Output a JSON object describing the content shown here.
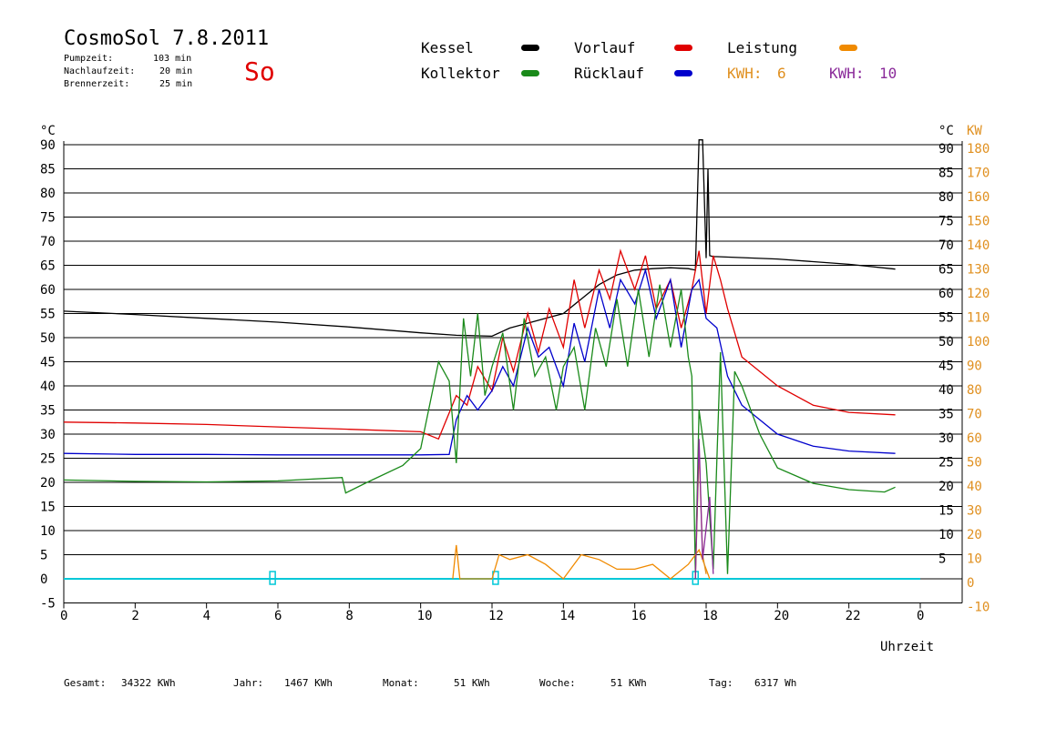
{
  "header": {
    "title": "CosmoSol 7.8.2011",
    "day": "So",
    "info": [
      {
        "label": "Pumpzeit:",
        "value": "103 min"
      },
      {
        "label": "Nachlaufzeit:",
        "value": "20 min"
      },
      {
        "label": "Brennerzeit:",
        "value": "25 min"
      }
    ]
  },
  "legend": {
    "kessel": {
      "label": "Kessel",
      "color": "#000000"
    },
    "vorlauf": {
      "label": "Vorlauf",
      "color": "#e00000"
    },
    "leistung": {
      "label": "Leistung",
      "color": "#f08a00"
    },
    "kollektor": {
      "label": "Kollektor",
      "color": "#1a8a1a"
    },
    "ruecklauf": {
      "label": "Rücklauf",
      "color": "#0000cc"
    },
    "kwh1": {
      "label": "KWH:",
      "value": "6",
      "color": "#e09020"
    },
    "kwh2": {
      "label": "KWH:",
      "value": "10",
      "color": "#8a2a9a"
    }
  },
  "footer": [
    {
      "label": "Gesamt:",
      "value": "34322 KWh"
    },
    {
      "label": "Jahr:",
      "value": "1467 KWh"
    },
    {
      "label": "Monat:",
      "value": "51 KWh"
    },
    {
      "label": "Woche:",
      "value": "51 KWh"
    },
    {
      "label": "Tag:",
      "value": "6317 Wh"
    }
  ],
  "chart_data": {
    "type": "line",
    "xlabel": "Uhrzeit",
    "ylabel_left": "°C",
    "ylabel_right_temp": "°C",
    "ylabel_right_power": "KW",
    "xlim": [
      0,
      24
    ],
    "ylim": [
      -5,
      92
    ],
    "x_ticks": [
      "0",
      "2",
      "4",
      "6",
      "8",
      "10",
      "12",
      "14",
      "16",
      "18",
      "20",
      "22",
      "0"
    ],
    "y_ticks_left": [
      "-5",
      "0",
      "5",
      "10",
      "15",
      "20",
      "25",
      "30",
      "35",
      "40",
      "45",
      "50",
      "55",
      "60",
      "65",
      "70",
      "75",
      "80",
      "85",
      "90"
    ],
    "y_ticks_right": [
      "5",
      "10",
      "15",
      "20",
      "25",
      "30",
      "35",
      "40",
      "45",
      "50",
      "55",
      "60",
      "65",
      "70",
      "75",
      "80",
      "85",
      "90"
    ],
    "y_ticks_kw": [
      "-10",
      "0",
      "10",
      "20",
      "30",
      "40",
      "50",
      "60",
      "70",
      "80",
      "90",
      "100",
      "110",
      "120",
      "130",
      "140",
      "150",
      "160",
      "170",
      "180"
    ],
    "grid": true,
    "series": [
      {
        "name": "Kessel",
        "color": "#000000",
        "x": [
          0,
          2,
          4,
          6,
          8,
          10,
          11,
          12,
          12.5,
          13,
          13.5,
          14,
          14.5,
          15,
          15.5,
          16,
          16.5,
          17,
          17.5,
          17.7,
          17.8,
          17.9,
          18,
          18.05,
          18.1,
          18.2,
          18.3,
          20,
          22,
          23.3
        ],
        "y": [
          55.5,
          54.8,
          54,
          53.2,
          52.2,
          51,
          50.5,
          50.3,
          52,
          53,
          54,
          55,
          58,
          61,
          63,
          64,
          64.3,
          64.5,
          64.3,
          64,
          91,
          91,
          66.5,
          85,
          67,
          66.8,
          66.8,
          66.3,
          65.2,
          64.2
        ]
      },
      {
        "name": "Vorlauf",
        "color": "#e00000",
        "x": [
          0,
          2,
          4,
          6,
          8,
          10,
          10.5,
          11,
          11.3,
          11.6,
          12,
          12.3,
          12.6,
          13,
          13.3,
          13.6,
          14,
          14.3,
          14.6,
          15,
          15.3,
          15.6,
          16,
          16.3,
          16.6,
          17,
          17.3,
          17.6,
          17.8,
          18,
          18.2,
          18.4,
          18.6,
          19,
          20,
          21,
          22,
          23.3
        ],
        "y": [
          32.5,
          32.3,
          32,
          31.5,
          31,
          30.5,
          29,
          38,
          36,
          44,
          39,
          50,
          43,
          55,
          47,
          56,
          48,
          62,
          52,
          64,
          58,
          68,
          60,
          67,
          56,
          62,
          52,
          60,
          68,
          55,
          67,
          62,
          56,
          46,
          40,
          36,
          34.5,
          34
        ]
      },
      {
        "name": "Rücklauf",
        "color": "#0000cc",
        "x": [
          0,
          2,
          4,
          6,
          8,
          10,
          10.8,
          11,
          11.3,
          11.6,
          12,
          12.3,
          12.6,
          13,
          13.3,
          13.6,
          14,
          14.3,
          14.6,
          15,
          15.3,
          15.6,
          16,
          16.3,
          16.6,
          17,
          17.3,
          17.6,
          17.8,
          18,
          18.3,
          18.6,
          19,
          20,
          21,
          22,
          23.3
        ],
        "y": [
          26,
          25.8,
          25.8,
          25.7,
          25.7,
          25.7,
          25.8,
          33,
          38,
          35,
          39,
          44,
          40,
          52,
          46,
          48,
          40,
          53,
          45,
          60,
          52,
          62,
          57,
          64,
          54,
          62,
          48,
          60,
          62,
          54,
          52,
          42,
          36,
          30,
          27.5,
          26.5,
          26
        ]
      },
      {
        "name": "Kollektor",
        "color": "#1a8a1a",
        "x": [
          0,
          2,
          4,
          6,
          7.8,
          7.9,
          8.5,
          9.5,
          10,
          10.5,
          10.8,
          11,
          11.2,
          11.4,
          11.6,
          11.8,
          12,
          12.3,
          12.6,
          12.9,
          13.2,
          13.5,
          13.8,
          14,
          14.3,
          14.6,
          14.9,
          15.2,
          15.5,
          15.8,
          16.1,
          16.4,
          16.7,
          17,
          17.3,
          17.5,
          17.6,
          17.7,
          17.8,
          18,
          18.2,
          18.4,
          18.6,
          18.8,
          19,
          19.5,
          20,
          21,
          22,
          23,
          23.3
        ],
        "y": [
          20.5,
          20.2,
          20.1,
          20.3,
          21,
          17.8,
          20,
          23.5,
          27,
          45,
          41,
          24,
          54,
          42,
          55,
          38,
          44,
          51,
          35,
          54,
          42,
          46,
          35,
          44,
          48,
          35,
          52,
          44,
          58,
          44,
          60,
          46,
          61,
          48,
          60,
          46,
          42,
          1,
          35,
          24,
          2,
          47,
          1,
          43,
          40,
          30,
          23,
          19.8,
          18.5,
          18,
          19
        ]
      }
    ],
    "power_series": [
      {
        "name": "Leistung",
        "color": "#f08a00",
        "x": [
          10.9,
          11.0,
          11.1,
          12,
          12.2,
          12.5,
          13,
          13.5,
          14,
          14.5,
          15,
          15.5,
          16,
          16.5,
          17,
          17.5,
          17.8,
          18,
          18.1
        ],
        "y": [
          0,
          14,
          0,
          0,
          10,
          8,
          10,
          6,
          0,
          10,
          8,
          4,
          4,
          6,
          0,
          6,
          12,
          4,
          0
        ]
      }
    ],
    "kwh_series": [
      {
        "name": "KWH 6",
        "color": "#e09020",
        "x": [
          17.7,
          17.8,
          17.9,
          18.0
        ],
        "y": [
          0,
          27,
          5,
          1
        ]
      },
      {
        "name": "KWH 10",
        "color": "#8a2a9a",
        "x": [
          17.7,
          17.8,
          17.9,
          18.1,
          18.2
        ],
        "y": [
          0,
          29,
          4,
          17,
          1
        ]
      }
    ],
    "markers": [
      {
        "name": "pump-marker-1",
        "x": 5.85
      },
      {
        "name": "pump-marker-2",
        "x": 12.1
      },
      {
        "name": "pump-marker-3",
        "x": 17.7
      }
    ],
    "baseline": {
      "color": "#00c8d8",
      "y": 0
    }
  }
}
